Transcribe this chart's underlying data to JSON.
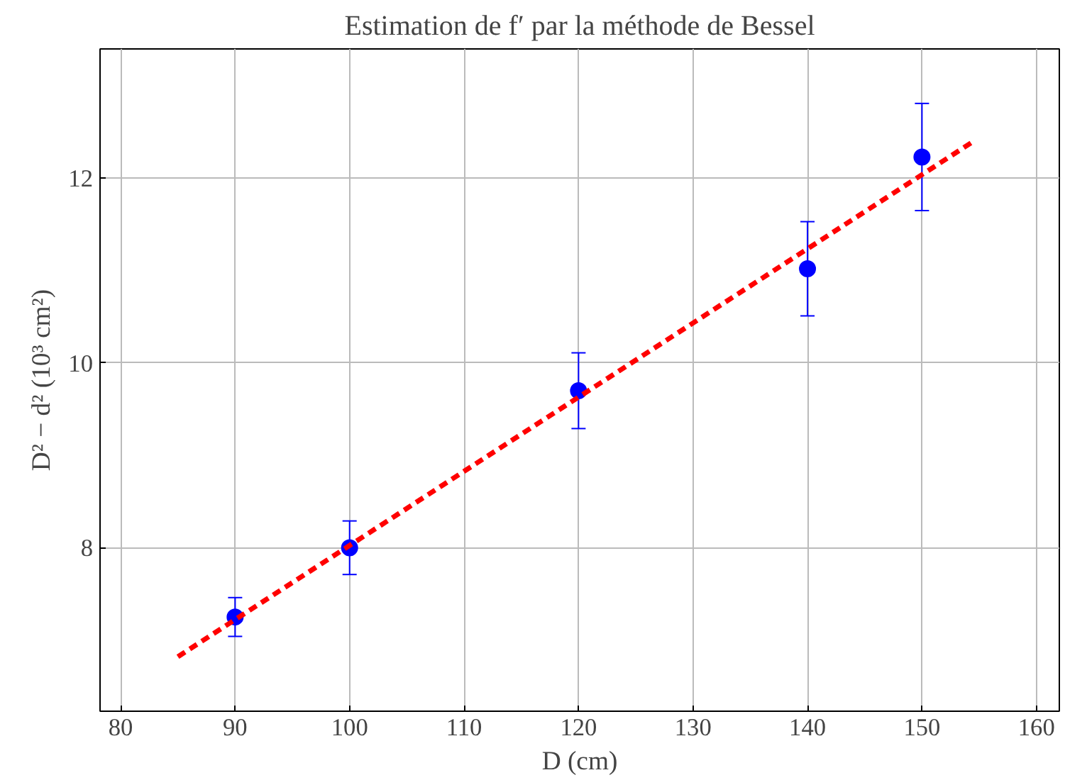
{
  "chart_data": {
    "type": "scatter",
    "title": "Estimation de f′ par la méthode de Bessel",
    "xlabel": "D (cm)",
    "ylabel": "D² − d² (10³ cm²)",
    "xlim": [
      78.2,
      162
    ],
    "ylim": [
      6.23,
      13.4
    ],
    "xticks": [
      80,
      90,
      100,
      110,
      120,
      130,
      140,
      150,
      160
    ],
    "yticks": [
      8,
      10,
      12
    ],
    "grid": true,
    "series": [
      {
        "marker": "circle",
        "color": "#0000ff",
        "x": [
          90,
          100,
          120,
          140,
          150
        ],
        "values": [
          7.25,
          8.0,
          9.7,
          11.02,
          12.23
        ],
        "errors": [
          0.21,
          0.29,
          0.41,
          0.51,
          0.58
        ]
      },
      {
        "type": "line",
        "color": "#ff0000",
        "line_style": "dashed",
        "x": [
          85,
          154.5
        ],
        "values": [
          6.82,
          12.4
        ]
      }
    ]
  }
}
